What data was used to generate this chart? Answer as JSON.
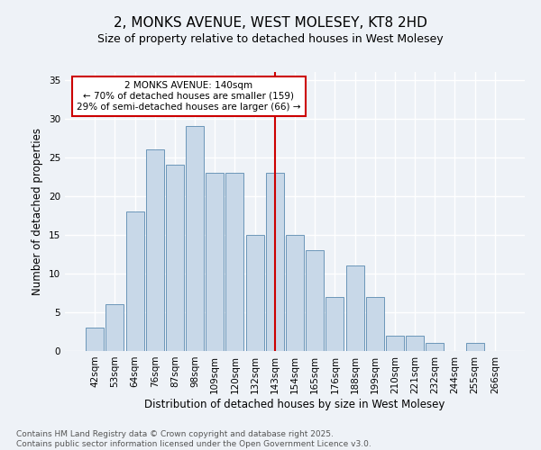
{
  "title": "2, MONKS AVENUE, WEST MOLESEY, KT8 2HD",
  "subtitle": "Size of property relative to detached houses in West Molesey",
  "xlabel": "Distribution of detached houses by size in West Molesey",
  "ylabel": "Number of detached properties",
  "bins": [
    "42sqm",
    "53sqm",
    "64sqm",
    "76sqm",
    "87sqm",
    "98sqm",
    "109sqm",
    "120sqm",
    "132sqm",
    "143sqm",
    "154sqm",
    "165sqm",
    "176sqm",
    "188sqm",
    "199sqm",
    "210sqm",
    "221sqm",
    "232sqm",
    "244sqm",
    "255sqm",
    "266sqm"
  ],
  "values": [
    3,
    6,
    18,
    26,
    24,
    29,
    23,
    23,
    15,
    23,
    15,
    13,
    7,
    11,
    7,
    2,
    2,
    1,
    0,
    1,
    0
  ],
  "bar_color": "#c8d8e8",
  "bar_edge_color": "#5a8ab0",
  "vline_x": 9.0,
  "annotation_text": "2 MONKS AVENUE: 140sqm\n← 70% of detached houses are smaller (159)\n29% of semi-detached houses are larger (66) →",
  "annotation_box_color": "#ffffff",
  "annotation_box_edge_color": "#cc0000",
  "vline_color": "#cc0000",
  "ylim": [
    0,
    36
  ],
  "yticks": [
    0,
    5,
    10,
    15,
    20,
    25,
    30,
    35
  ],
  "footer_text": "Contains HM Land Registry data © Crown copyright and database right 2025.\nContains public sector information licensed under the Open Government Licence v3.0.",
  "background_color": "#eef2f7",
  "grid_color": "#ffffff",
  "title_fontsize": 11,
  "subtitle_fontsize": 9,
  "axis_label_fontsize": 8.5,
  "tick_fontsize": 7.5,
  "footer_fontsize": 6.5,
  "annotation_fontsize": 7.5
}
